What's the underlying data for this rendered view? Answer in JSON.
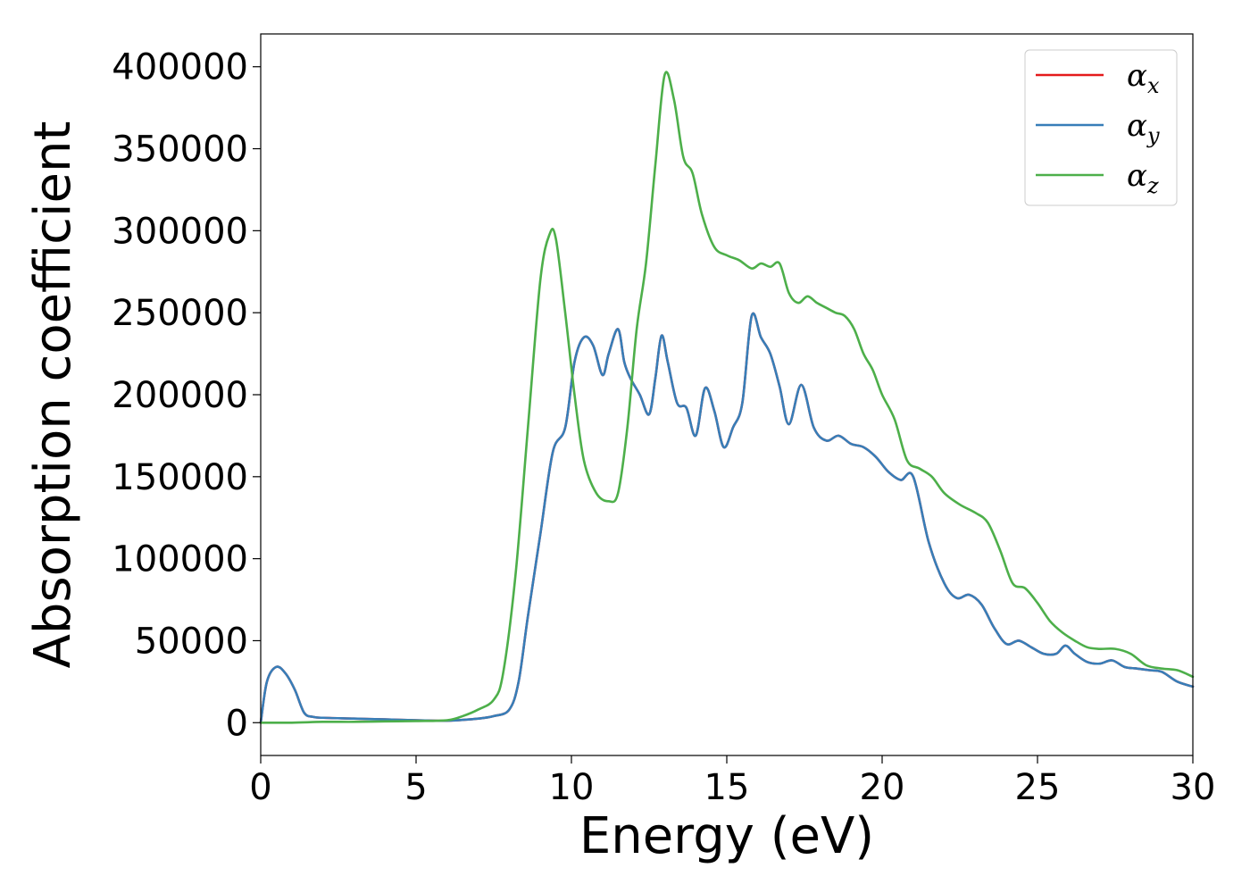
{
  "chart_data": {
    "type": "line",
    "title": "",
    "xlabel": "Energy (eV)",
    "ylabel": "Absorption coefficient",
    "xlim": [
      0,
      30
    ],
    "ylim": [
      -20000,
      420000
    ],
    "xticks": [
      0,
      5,
      10,
      15,
      20,
      25,
      30
    ],
    "yticks": [
      0,
      50000,
      100000,
      150000,
      200000,
      250000,
      300000,
      350000,
      400000
    ],
    "grid": false,
    "legend_position": "top-right",
    "series": [
      {
        "name": "α_x",
        "symbol": "α",
        "subscript": "x",
        "color": "#e41a1c",
        "x": [
          0,
          0.2,
          0.5,
          0.8,
          1.1,
          1.4,
          1.7,
          2,
          3,
          4,
          5,
          6,
          7,
          7.5,
          8,
          8.3,
          8.6,
          9,
          9.4,
          9.8,
          10.1,
          10.4,
          10.7,
          11,
          11.2,
          11.5,
          11.7,
          11.9,
          12.2,
          12.5,
          12.7,
          12.9,
          13.1,
          13.4,
          13.7,
          14,
          14.3,
          14.6,
          14.9,
          15.2,
          15.5,
          15.8,
          16.1,
          16.4,
          16.7,
          17,
          17.4,
          17.8,
          18.2,
          18.6,
          19,
          19.4,
          19.8,
          20.2,
          20.6,
          21,
          21.5,
          22,
          22.4,
          22.8,
          23.2,
          23.6,
          24,
          24.4,
          24.8,
          25.2,
          25.6,
          25.9,
          26.2,
          26.6,
          27,
          27.4,
          27.8,
          28.2,
          28.6,
          29,
          29.5,
          30
        ],
        "y": [
          0,
          25000,
          34000,
          30000,
          20000,
          6000,
          3500,
          3000,
          2500,
          2000,
          1500,
          1200,
          2500,
          4000,
          8000,
          25000,
          65000,
          115000,
          165000,
          180000,
          220000,
          235000,
          230000,
          212000,
          225000,
          240000,
          220000,
          210000,
          200000,
          188000,
          210000,
          236000,
          220000,
          195000,
          192000,
          175000,
          204000,
          190000,
          168000,
          180000,
          195000,
          248000,
          235000,
          225000,
          205000,
          182000,
          206000,
          180000,
          172000,
          175000,
          170000,
          168000,
          162000,
          153000,
          148000,
          150000,
          110000,
          85000,
          76000,
          78000,
          72000,
          58000,
          48000,
          50000,
          46000,
          42000,
          42000,
          47000,
          42000,
          37000,
          36000,
          38000,
          34000,
          33000,
          32000,
          31000,
          25000,
          22000
        ]
      },
      {
        "name": "α_y",
        "symbol": "α",
        "subscript": "y",
        "color": "#377eb8",
        "x": [
          0,
          0.2,
          0.5,
          0.8,
          1.1,
          1.4,
          1.7,
          2,
          3,
          4,
          5,
          6,
          7,
          7.5,
          8,
          8.3,
          8.6,
          9,
          9.4,
          9.8,
          10.1,
          10.4,
          10.7,
          11,
          11.2,
          11.5,
          11.7,
          11.9,
          12.2,
          12.5,
          12.7,
          12.9,
          13.1,
          13.4,
          13.7,
          14,
          14.3,
          14.6,
          14.9,
          15.2,
          15.5,
          15.8,
          16.1,
          16.4,
          16.7,
          17,
          17.4,
          17.8,
          18.2,
          18.6,
          19,
          19.4,
          19.8,
          20.2,
          20.6,
          21,
          21.5,
          22,
          22.4,
          22.8,
          23.2,
          23.6,
          24,
          24.4,
          24.8,
          25.2,
          25.6,
          25.9,
          26.2,
          26.6,
          27,
          27.4,
          27.8,
          28.2,
          28.6,
          29,
          29.5,
          30
        ],
        "y": [
          0,
          25000,
          34000,
          30000,
          20000,
          6000,
          3500,
          3000,
          2500,
          2000,
          1500,
          1200,
          2500,
          4000,
          8000,
          25000,
          65000,
          115000,
          165000,
          180000,
          220000,
          235000,
          230000,
          212000,
          225000,
          240000,
          220000,
          210000,
          200000,
          188000,
          210000,
          236000,
          220000,
          195000,
          192000,
          175000,
          204000,
          190000,
          168000,
          180000,
          195000,
          248000,
          235000,
          225000,
          205000,
          182000,
          206000,
          180000,
          172000,
          175000,
          170000,
          168000,
          162000,
          153000,
          148000,
          150000,
          110000,
          85000,
          76000,
          78000,
          72000,
          58000,
          48000,
          50000,
          46000,
          42000,
          42000,
          47000,
          42000,
          37000,
          36000,
          38000,
          34000,
          33000,
          32000,
          31000,
          25000,
          22000
        ]
      },
      {
        "name": "α_z",
        "symbol": "α",
        "subscript": "z",
        "color": "#4daf4a",
        "x": [
          0,
          1,
          2,
          3,
          4,
          5,
          6,
          6.5,
          7,
          7.5,
          7.8,
          8.2,
          8.6,
          9,
          9.3,
          9.5,
          9.8,
          10.1,
          10.4,
          10.8,
          11.2,
          11.5,
          11.8,
          12.1,
          12.4,
          12.7,
          13,
          13.3,
          13.6,
          13.9,
          14.2,
          14.6,
          15,
          15.4,
          15.8,
          16.1,
          16.4,
          16.7,
          17,
          17.3,
          17.6,
          17.9,
          18.2,
          18.5,
          18.8,
          19.1,
          19.4,
          19.7,
          20,
          20.4,
          20.8,
          21.2,
          21.6,
          22,
          22.5,
          23,
          23.4,
          23.8,
          24.2,
          24.6,
          25,
          25.4,
          25.8,
          26.2,
          26.6,
          27,
          27.5,
          28,
          28.5,
          29,
          29.5,
          30
        ],
        "y": [
          0,
          0,
          500,
          500,
          800,
          1000,
          1500,
          4000,
          8000,
          14000,
          30000,
          90000,
          180000,
          270000,
          298000,
          295000,
          250000,
          200000,
          160000,
          140000,
          135000,
          140000,
          180000,
          240000,
          280000,
          340000,
          395000,
          380000,
          345000,
          335000,
          310000,
          290000,
          285000,
          282000,
          277000,
          280000,
          278000,
          280000,
          262000,
          256000,
          260000,
          256000,
          253000,
          250000,
          248000,
          240000,
          225000,
          215000,
          200000,
          185000,
          160000,
          155000,
          150000,
          140000,
          133000,
          128000,
          122000,
          105000,
          85000,
          82000,
          73000,
          62000,
          55000,
          50000,
          46000,
          45000,
          45000,
          42000,
          35000,
          33000,
          32000,
          28000
        ]
      }
    ]
  }
}
